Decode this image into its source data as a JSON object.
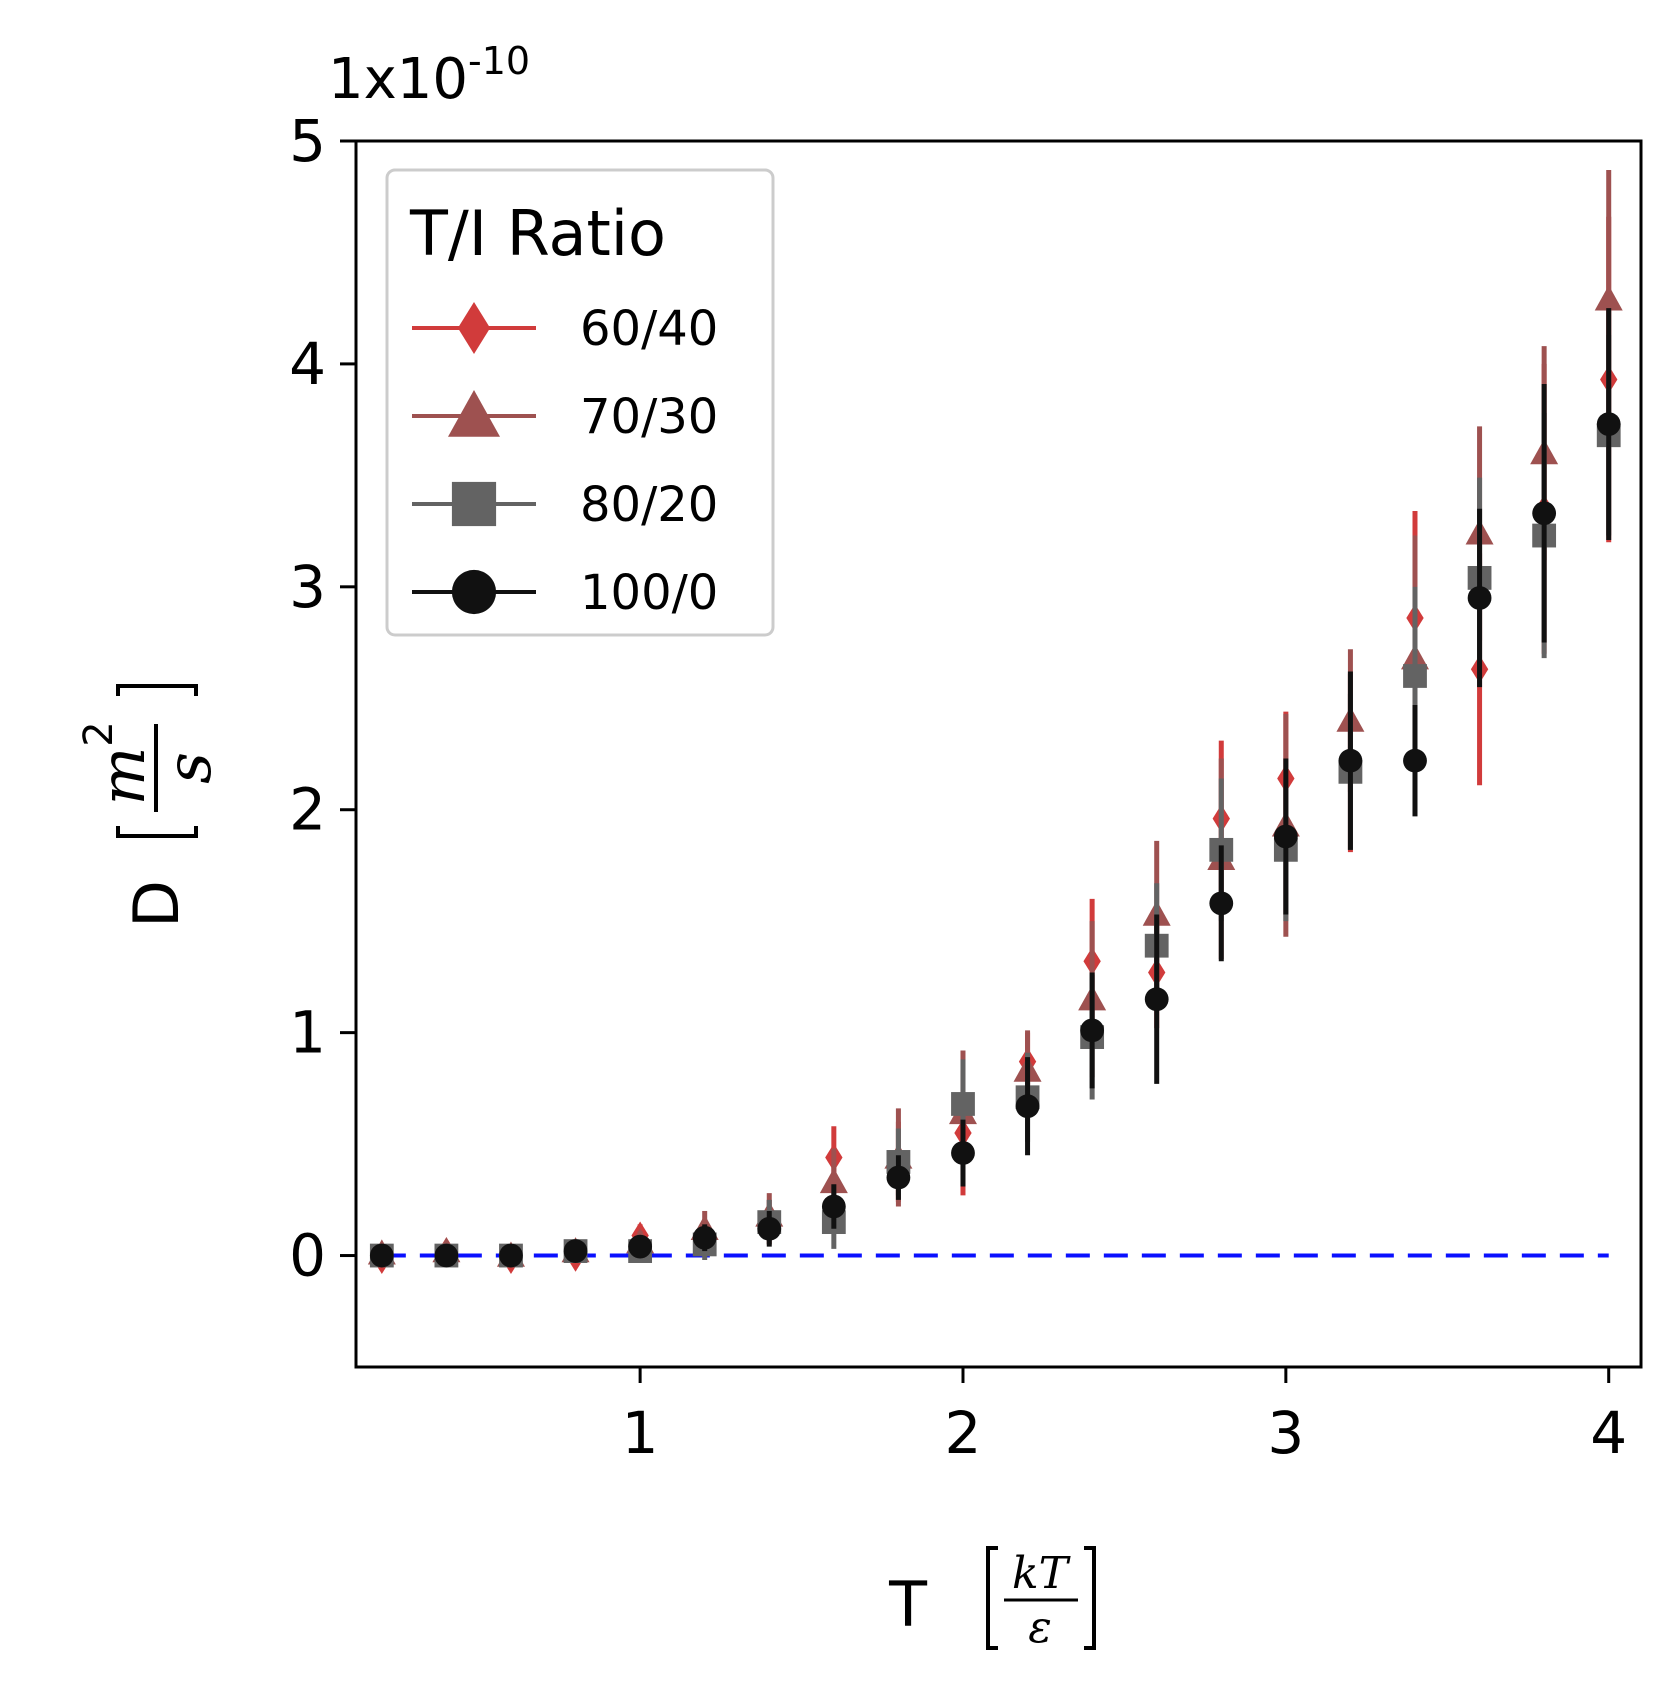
{
  "chart_data": {
    "type": "scatter",
    "title": "",
    "xlabel": "T",
    "xlabel_unit_num": "kT",
    "xlabel_unit_den": "ε",
    "ylabel": "D",
    "ylabel_unit_num": "m",
    "ylabel_unit_exp": "2",
    "ylabel_unit_den": "s",
    "y_offset_base": "1x10",
    "y_offset_exp": "-10",
    "xlim": [
      0.12,
      4.1
    ],
    "ylim": [
      -0.5,
      5
    ],
    "x_ticks": [
      1,
      2,
      3,
      4
    ],
    "x_tick_labels": [
      "1",
      "2",
      "3",
      "4"
    ],
    "y_ticks": [
      0,
      1,
      2,
      3,
      4,
      5
    ],
    "y_tick_labels": [
      "0",
      "1",
      "2",
      "3",
      "4",
      "5"
    ],
    "grid": false,
    "legend": {
      "title": "T/I Ratio",
      "position": "top-left"
    },
    "reference_line": {
      "y": 0,
      "style": "dashed",
      "color": "#0a10ff"
    },
    "x": [
      0.2,
      0.4,
      0.6,
      0.8,
      1.0,
      1.2,
      1.4,
      1.6,
      1.8,
      2.0,
      2.2,
      2.4,
      2.6,
      2.8,
      3.0,
      3.2,
      3.4,
      3.6,
      3.8,
      4.0
    ],
    "series": [
      {
        "name": "60/40",
        "marker": "diamond",
        "color": "#d13b3b",
        "values": [
          -0.02,
          0.02,
          -0.02,
          -0.01,
          0.09,
          0.08,
          0.15,
          0.44,
          0.42,
          0.55,
          0.87,
          1.32,
          1.27,
          1.96,
          2.14,
          2.21,
          2.86,
          2.63,
          3.35,
          3.93
        ],
        "errors": [
          0.02,
          0.02,
          0.02,
          0.03,
          0.05,
          0.08,
          0.1,
          0.14,
          0.18,
          0.28,
          0.13,
          0.28,
          0.25,
          0.35,
          0.3,
          0.4,
          0.48,
          0.52,
          0.65,
          0.73
        ]
      },
      {
        "name": "70/30",
        "marker": "triangle",
        "color": "#9e5150",
        "values": [
          0.01,
          0.02,
          0.0,
          0.02,
          0.06,
          0.12,
          0.18,
          0.33,
          0.44,
          0.64,
          0.83,
          1.15,
          1.53,
          1.78,
          1.93,
          2.4,
          2.68,
          3.24,
          3.6,
          4.29
        ],
        "errors": [
          0.02,
          0.02,
          0.02,
          0.03,
          0.05,
          0.08,
          0.1,
          0.15,
          0.22,
          0.28,
          0.18,
          0.35,
          0.33,
          0.45,
          0.5,
          0.32,
          0.55,
          0.48,
          0.48,
          0.58
        ]
      },
      {
        "name": "80/20",
        "marker": "square",
        "color": "#636363",
        "values": [
          0.0,
          0.0,
          0.0,
          0.02,
          0.02,
          0.05,
          0.15,
          0.15,
          0.42,
          0.68,
          0.71,
          0.98,
          1.39,
          1.82,
          1.82,
          2.17,
          2.6,
          3.04,
          3.23,
          3.68
        ],
        "errors": [
          0.02,
          0.02,
          0.02,
          0.03,
          0.04,
          0.07,
          0.1,
          0.12,
          0.15,
          0.2,
          0.2,
          0.28,
          0.28,
          0.32,
          0.32,
          0.35,
          0.4,
          0.45,
          0.55,
          0.45
        ]
      },
      {
        "name": "100/0",
        "marker": "circle",
        "color": "#111111",
        "values": [
          0.0,
          0.0,
          0.0,
          0.02,
          0.04,
          0.08,
          0.12,
          0.22,
          0.35,
          0.46,
          0.67,
          1.01,
          1.15,
          1.58,
          1.88,
          2.22,
          2.22,
          2.95,
          3.33,
          3.73
        ],
        "errors": [
          0.02,
          0.02,
          0.02,
          0.03,
          0.04,
          0.06,
          0.08,
          0.1,
          0.1,
          0.15,
          0.22,
          0.26,
          0.38,
          0.26,
          0.35,
          0.4,
          0.25,
          0.4,
          0.58,
          0.52
        ]
      }
    ]
  }
}
